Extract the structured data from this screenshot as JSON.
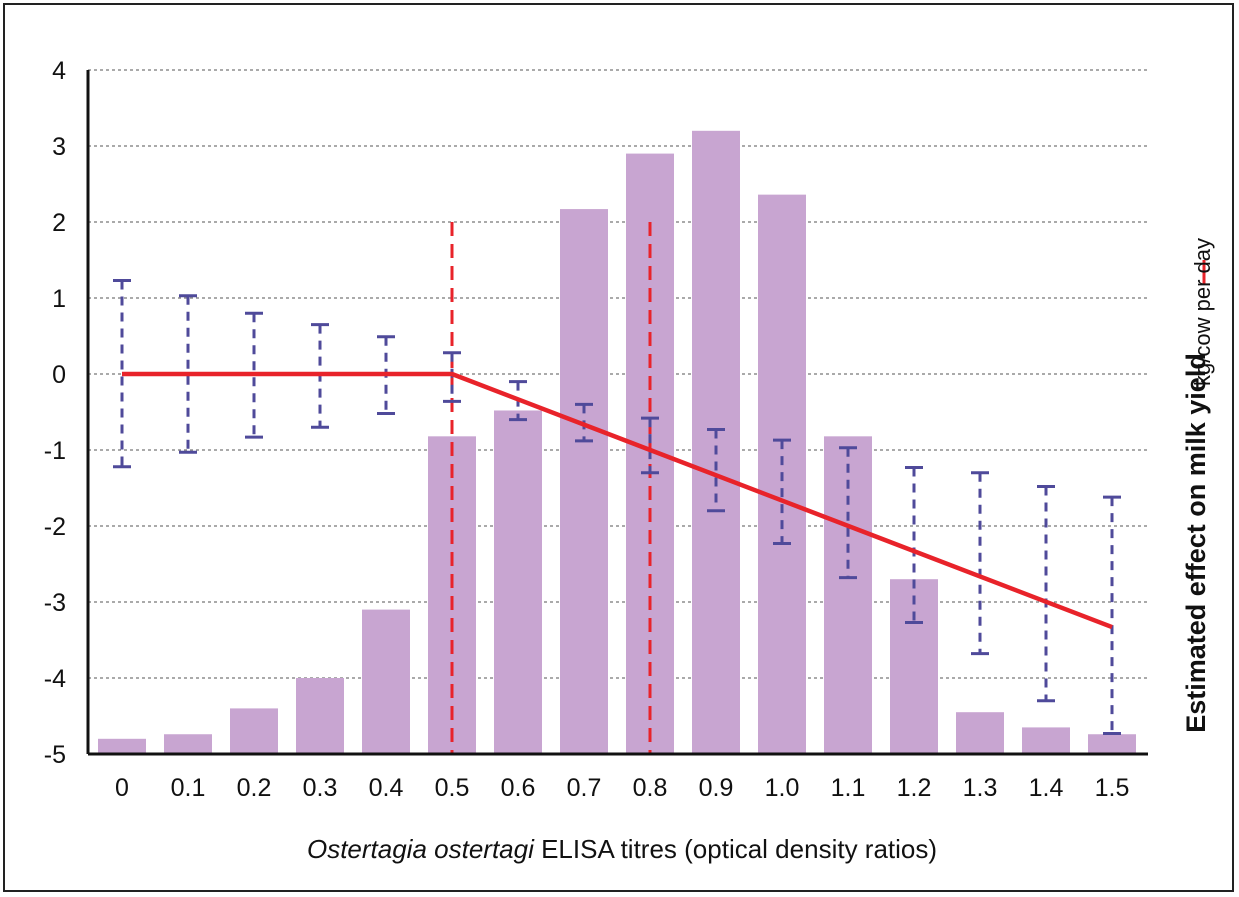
{
  "chart_data": {
    "type": "bar",
    "categories": [
      "0",
      "0.1",
      "0.2",
      "0.3",
      "0.4",
      "0.5",
      "0.6",
      "0.7",
      "0.8",
      "0.9",
      "1.0",
      "1.1",
      "1.2",
      "1.3",
      "1.4",
      "1.5"
    ],
    "bar_values": [
      -4.8,
      -4.74,
      -4.4,
      -4.0,
      -3.1,
      -0.82,
      -0.48,
      2.17,
      2.9,
      3.2,
      2.36,
      -0.82,
      -2.7,
      -4.45,
      -4.65,
      -4.74
    ],
    "effect_line": {
      "name": "kg/cow per day",
      "color": "#e8232a",
      "x": [
        0,
        0.5,
        1.5
      ],
      "y": [
        0,
        0,
        -3.33
      ]
    },
    "error_bars": {
      "color": "#4f4a9a",
      "x": [
        0,
        0.1,
        0.2,
        0.3,
        0.4,
        0.5,
        0.6,
        0.7,
        0.8,
        0.9,
        1.0,
        1.1,
        1.2,
        1.3,
        1.4,
        1.5
      ],
      "lower": [
        -1.22,
        -1.03,
        -0.83,
        -0.7,
        -0.52,
        -0.36,
        -0.6,
        -0.88,
        -1.3,
        -1.8,
        -2.23,
        -2.68,
        -3.27,
        -3.68,
        -4.3,
        -4.73
      ],
      "upper": [
        1.23,
        1.03,
        0.8,
        0.65,
        0.49,
        0.28,
        -0.1,
        -0.4,
        -0.58,
        -0.73,
        -0.87,
        -0.97,
        -1.23,
        -1.3,
        -1.48,
        -1.62
      ]
    },
    "reference_lines": {
      "color": "#e8232a",
      "x": [
        0.5,
        0.8
      ],
      "y_top": 2.0
    },
    "bar_color": "#c8a5d1",
    "ylim": [
      -5,
      4
    ],
    "y_ticks": [
      4,
      3,
      2,
      1,
      0,
      -1,
      -2,
      -3,
      -4,
      -5
    ],
    "xlabel_italic": "Ostertagia ostertagi",
    "xlabel_rest": " ELISA titres (optical density ratios)",
    "ylabel": "Estimated effect on milk yield",
    "legend": {
      "label": "kg/cow per day",
      "placement": "right"
    },
    "grid": "horizontal dashed"
  }
}
